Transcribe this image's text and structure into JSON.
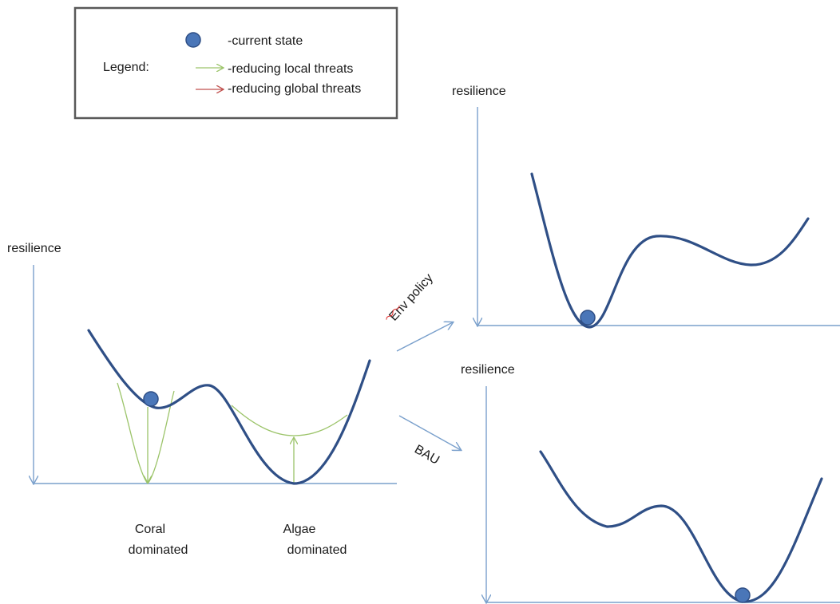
{
  "legend": {
    "title": "Legend:",
    "items": [
      {
        "label": "-current state",
        "icon": "ball-icon"
      },
      {
        "label": "-reducing local threats",
        "color": "#9cc46a"
      },
      {
        "label": "-reducing global threats",
        "color": "#c0504d"
      }
    ]
  },
  "left_panel": {
    "ylabel": "resilience",
    "states": {
      "coral": [
        "Coral",
        "dominated"
      ],
      "algae": [
        "Algae",
        "dominated"
      ]
    }
  },
  "arrows": {
    "env_policy": "Env policy",
    "bau": "BAU"
  },
  "top_right_panel": {
    "ylabel": "resilience"
  },
  "bottom_right_panel": {
    "ylabel": "resilience"
  },
  "colors": {
    "curve": "#2f4f86",
    "axis": "#7aa0cc",
    "ball": "#4a76b8",
    "local_threats": "#9cc46a",
    "global_threats": "#c0504d",
    "spellcheck": "#e03030"
  }
}
